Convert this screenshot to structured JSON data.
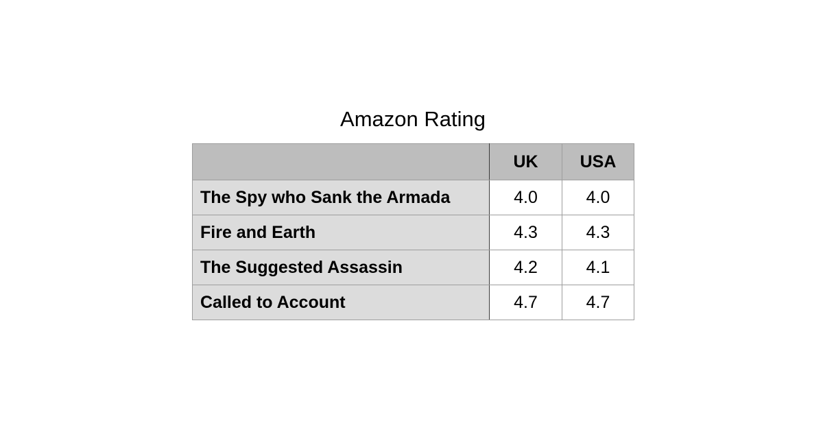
{
  "chart_data": {
    "type": "table",
    "title": "Amazon Rating",
    "columns": [
      "",
      "UK",
      "USA"
    ],
    "rows": [
      {
        "label": "The Spy who Sank the Armada",
        "values": [
          "4.0",
          "4.0"
        ]
      },
      {
        "label": "Fire and Earth",
        "values": [
          "4.3",
          "4.3"
        ]
      },
      {
        "label": "The Suggested Assassin",
        "values": [
          "4.2",
          "4.1"
        ]
      },
      {
        "label": "Called to Account",
        "values": [
          "4.7",
          "4.7"
        ]
      }
    ]
  },
  "colors": {
    "header_bg": "#bdbdbd",
    "row_label_bg": "#dcdcdc",
    "cell_bg": "#ffffff",
    "border": "#9d9d9d"
  }
}
